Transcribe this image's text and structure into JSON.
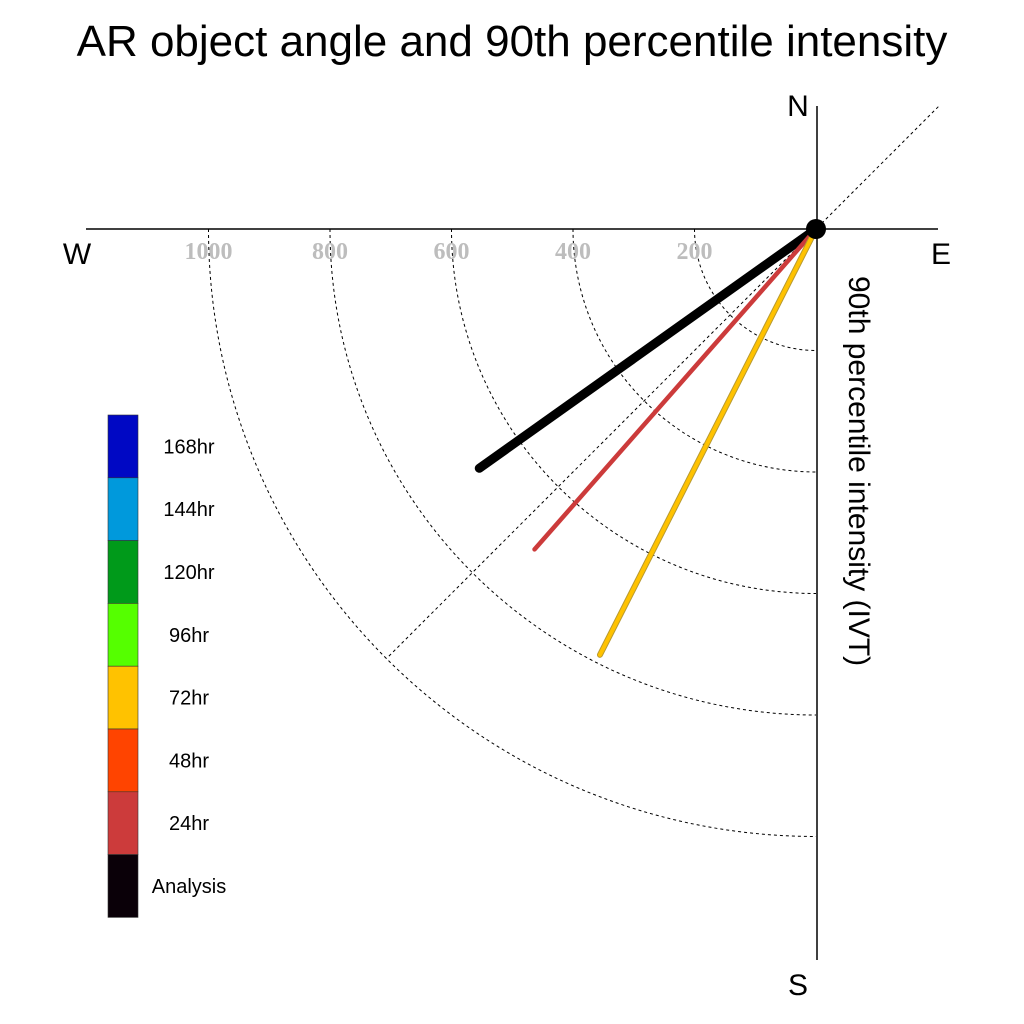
{
  "chart_data": {
    "type": "polar-vector",
    "title": "AR object angle and 90th percentile intensity",
    "ylabel": "90th percentile intensity (IVT)",
    "compass": {
      "north": "N",
      "south": "S",
      "east": "E",
      "west": "W"
    },
    "radial_ticks": [
      "200",
      "400",
      "600",
      "800",
      "1000"
    ],
    "radial_tick_values": [
      200,
      400,
      600,
      800,
      1000
    ],
    "rlim": [
      0,
      1200
    ],
    "sector": "south-west quadrant",
    "reference_line_angle_deg": 45,
    "series": [
      {
        "name": "Analysis",
        "angle_deg_from_south": 54.6,
        "intensity": 680,
        "color": "#000000"
      },
      {
        "name": "24hr",
        "angle_deg_from_south": 41.3,
        "intensity": 702,
        "color": "#cc3b3b"
      },
      {
        "name": "72hr",
        "angle_deg_from_south": 26.9,
        "intensity": 786,
        "color": "#ffc200"
      }
    ],
    "legend": {
      "placement": "lower-left",
      "entries": [
        {
          "label": "168hr",
          "color": "#0008c4"
        },
        {
          "label": "144hr",
          "color": "#0099dc"
        },
        {
          "label": "120hr",
          "color": "#009a1a"
        },
        {
          "label": "96hr",
          "color": "#55ff00"
        },
        {
          "label": "72hr",
          "color": "#ffc200"
        },
        {
          "label": "48hr",
          "color": "#ff4400"
        },
        {
          "label": "24hr",
          "color": "#cc3b3b"
        },
        {
          "label": "Analysis",
          "color": "#0a0008"
        }
      ]
    }
  }
}
